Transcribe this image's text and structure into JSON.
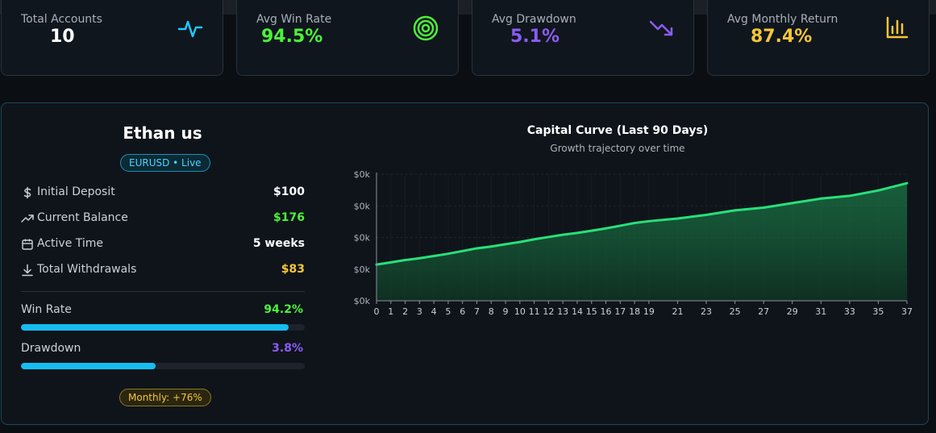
{
  "stats": [
    {
      "label": "Total Accounts",
      "value": "10",
      "color": "#ffffff",
      "icon": "pulse-icon"
    },
    {
      "label": "Avg Win Rate",
      "value": "94.5%",
      "color": "#4cf23a",
      "icon": "target-icon"
    },
    {
      "label": "Avg Drawdown",
      "value": "5.1%",
      "color": "#8b5cf6",
      "icon": "trending-down-icon"
    },
    {
      "label": "Avg Monthly Return",
      "value": "87.4%",
      "color": "#f6c63a",
      "icon": "bar-chart-icon"
    }
  ],
  "account": {
    "name": "Ethan us",
    "badge": "EURUSD • Live",
    "rows": [
      {
        "icon": "dollar-icon",
        "label": "Initial Deposit",
        "value": "$100",
        "color": "#ffffff"
      },
      {
        "icon": "trending-up-icon",
        "label": "Current Balance",
        "value": "$176",
        "color": "#4cf23a"
      },
      {
        "icon": "calendar-icon",
        "label": "Active Time",
        "value": "5 weeks",
        "color": "#ffffff"
      },
      {
        "icon": "download-icon",
        "label": "Total Withdrawals",
        "value": "$83",
        "color": "#f6c63a"
      }
    ],
    "win_rate": {
      "label": "Win Rate",
      "value": "94.2%",
      "fraction": 0.942,
      "color": "#4cf23a"
    },
    "drawdown": {
      "label": "Drawdown",
      "value": "3.8%",
      "fraction": 0.475,
      "color": "#8b5cf6"
    },
    "monthly": "Monthly: +76%"
  },
  "chart": {
    "title": "Capital Curve (Last 90 Days)",
    "subtitle": "Growth trajectory over time"
  },
  "chart_data": {
    "type": "area",
    "title": "Capital Curve (Last 90 Days)",
    "subtitle": "Growth trajectory over time",
    "x_ticks": [
      "0",
      "1",
      "2",
      "3",
      "4",
      "5",
      "6",
      "7",
      "8",
      "9",
      "10",
      "11",
      "12",
      "13",
      "14",
      "15",
      "16",
      "17",
      "18",
      "19",
      "21",
      "23",
      "25",
      "27",
      "29",
      "31",
      "33",
      "35",
      "37"
    ],
    "y_ticks": [
      "$0k",
      "$0k",
      "$0k",
      "$0k",
      "$0k"
    ],
    "x": [
      0,
      1,
      2,
      3,
      4,
      5,
      6,
      7,
      8,
      9,
      10,
      11,
      12,
      13,
      14,
      15,
      16,
      17,
      18,
      19,
      21,
      23,
      25,
      27,
      29,
      31,
      33,
      35,
      37
    ],
    "values": [
      100,
      102.5,
      105,
      107,
      109.5,
      112,
      115,
      118,
      120,
      122.5,
      125,
      128,
      130.5,
      133,
      135,
      137.5,
      140,
      143,
      146,
      148,
      151,
      155,
      160,
      163,
      168,
      173,
      176,
      182,
      190
    ],
    "ylim": [
      60,
      200
    ],
    "line_color": "#28e07a",
    "grid": true
  }
}
